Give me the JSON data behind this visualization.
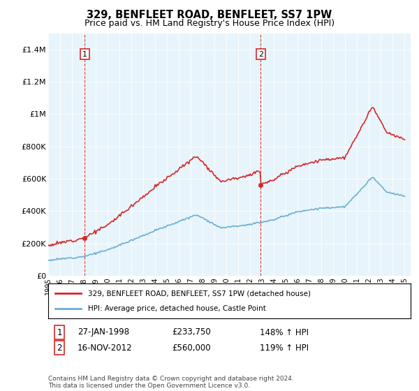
{
  "title": "329, BENFLEET ROAD, BENFLEET, SS7 1PW",
  "subtitle": "Price paid vs. HM Land Registry's House Price Index (HPI)",
  "legend_line1": "329, BENFLEET ROAD, BENFLEET, SS7 1PW (detached house)",
  "legend_line2": "HPI: Average price, detached house, Castle Point",
  "transaction1_label": "1",
  "transaction1_date": "27-JAN-1998",
  "transaction1_price": "£233,750",
  "transaction1_hpi": "148% ↑ HPI",
  "transaction2_label": "2",
  "transaction2_date": "16-NOV-2012",
  "transaction2_price": "£560,000",
  "transaction2_hpi": "119% ↑ HPI",
  "footer": "Contains HM Land Registry data © Crown copyright and database right 2024.\nThis data is licensed under the Open Government Licence v3.0.",
  "hpi_color": "#6baed6",
  "property_color": "#d62728",
  "vline_color": "#d62728",
  "ylim": [
    0,
    1500000
  ],
  "yticks": [
    0,
    200000,
    400000,
    600000,
    800000,
    1000000,
    1200000,
    1400000
  ],
  "ytick_labels": [
    "£0",
    "£200K",
    "£400K",
    "£600K",
    "£800K",
    "£1M",
    "£1.2M",
    "£1.4M"
  ],
  "xlim_start": 1995,
  "xlim_end": 2025.5,
  "transaction1_year": 1998.07,
  "transaction1_value": 233750,
  "transaction2_year": 2012.88,
  "transaction2_value": 560000,
  "bg_color": "#e8f4fb"
}
